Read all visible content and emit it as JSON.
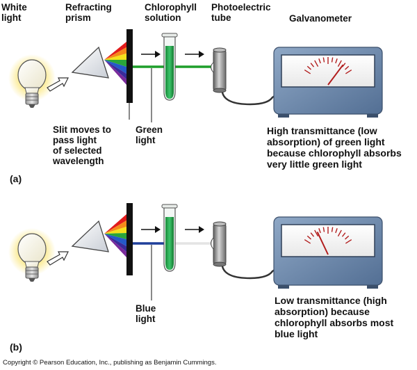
{
  "labels": {
    "white_light": "White\nlight",
    "refracting_prism": "Refracting\nprism",
    "chlorophyll_solution": "Chlorophyll\nsolution",
    "photoelectric_tube": "Photoelectric\ntube",
    "galvanometer": "Galvanometer"
  },
  "panel_a": {
    "tag": "(a)",
    "slit_caption": "Slit moves to\npass light\nof selected\nwavelength",
    "light_label": "Green\nlight",
    "result": "High transmittance (low\nabsorption) of green light\nbecause chlorophyll absorbs\nvery little green light",
    "beam_color": "#1e9e2a",
    "transmitted_color": "#1e9e2a",
    "needle_reading": 0.82
  },
  "panel_b": {
    "tag": "(b)",
    "light_label": "Blue\nlight",
    "result": "Low transmittance (high\nabsorption) because\nchlorophyll absorbs most\nblue light",
    "beam_color": "#1f3f9a",
    "transmitted_color": "#e4e4e4",
    "needle_reading": 0.28
  },
  "copyright": "Copyright © Pearson Education, Inc., publishing as Benjamin Cummings."
}
